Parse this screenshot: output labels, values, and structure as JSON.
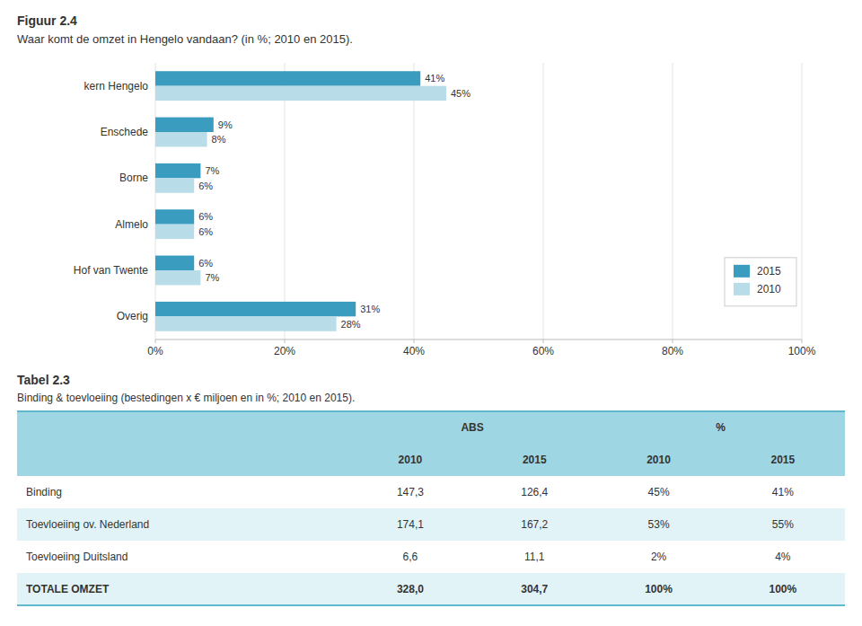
{
  "chart_data": [
    {
      "type": "bar",
      "orientation": "horizontal",
      "title": "Figuur 2.4",
      "subtitle": "Waar komt de omzet in Hengelo vandaan? (in %; 2010 en 2015).",
      "categories": [
        "kern Hengelo",
        "Enschede",
        "Borne",
        "Almelo",
        "Hof van Twente",
        "Overig"
      ],
      "series": [
        {
          "name": "2015",
          "color": "#3a9dbf",
          "values": [
            41,
            9,
            7,
            6,
            6,
            31
          ],
          "value_labels": [
            "41%",
            "9%",
            "7%",
            "6%",
            "6%",
            "31%"
          ]
        },
        {
          "name": "2010",
          "color": "#b8dce8",
          "values": [
            45,
            8,
            6,
            6,
            7,
            28
          ],
          "value_labels": [
            "45%",
            "8%",
            "6%",
            "6%",
            "7%",
            "28%"
          ]
        }
      ],
      "xlim": [
        0,
        100
      ],
      "xticks": [
        {
          "value": 0,
          "label": "0%"
        },
        {
          "value": 20,
          "label": "20%"
        },
        {
          "value": 40,
          "label": "40%"
        },
        {
          "value": 60,
          "label": "60%"
        },
        {
          "value": 80,
          "label": "80%"
        },
        {
          "value": 100,
          "label": "100%"
        }
      ],
      "grid": true,
      "data_labels": true,
      "legend": "lower right"
    },
    {
      "type": "table",
      "title": "Tabel 2.3",
      "subtitle": "Binding & toevloeiing (bestedingen x € miljoen en in %; 2010 en 2015).",
      "column_groups": [
        "ABS",
        "%"
      ],
      "columns": [
        "2010",
        "2015",
        "2010",
        "2015"
      ],
      "rows": [
        [
          "Binding",
          "147,3",
          "126,4",
          "45%",
          "41%"
        ],
        [
          "Toevloeiing ov. Nederland",
          "174,1",
          "167,2",
          "53%",
          "55%"
        ],
        [
          "Toevloeiing Duitsland",
          "6,6",
          "11,1",
          "2%",
          "4%"
        ],
        [
          "TOTALE OMZET",
          "328,0",
          "304,7",
          "100%",
          "100%"
        ]
      ]
    }
  ]
}
